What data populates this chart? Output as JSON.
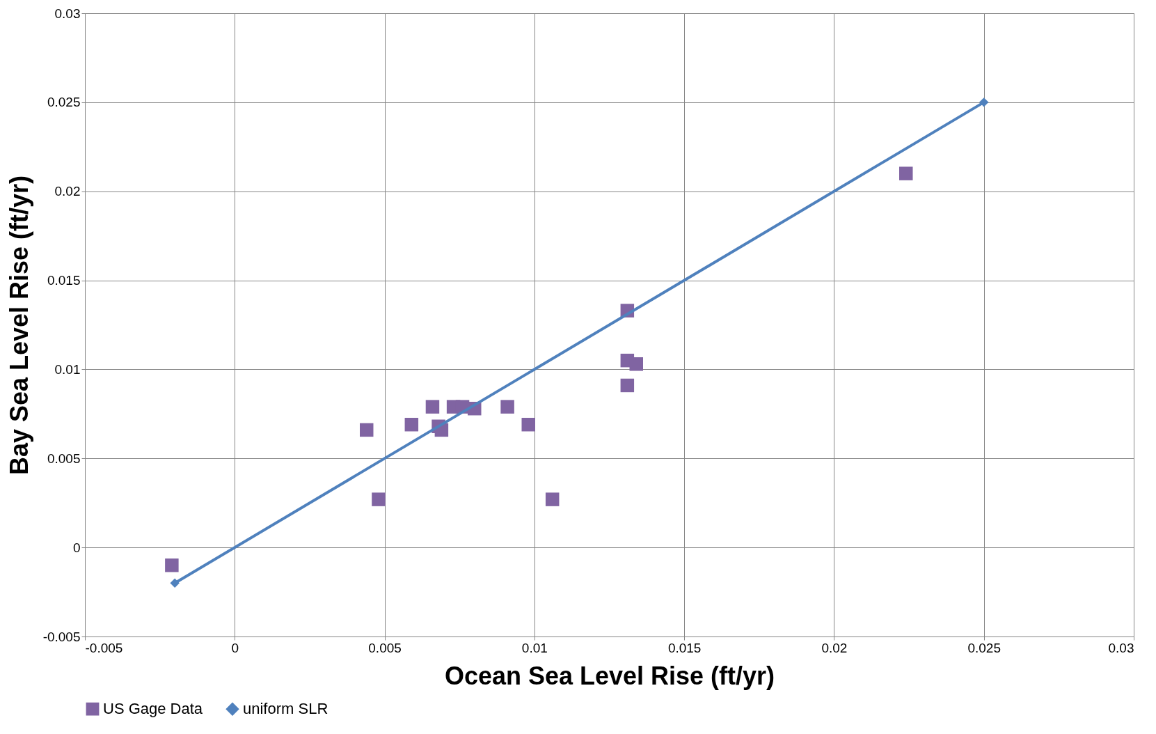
{
  "chart_data": {
    "type": "scatter",
    "xlabel": "Ocean Sea Level Rise (ft/yr)",
    "ylabel": "Bay Sea Level Rise (ft/yr)",
    "xlim": [
      -0.005,
      0.03
    ],
    "ylim": [
      -0.005,
      0.03
    ],
    "xticks": [
      -0.005,
      0,
      0.005,
      0.01,
      0.015,
      0.02,
      0.025,
      0.03
    ],
    "yticks": [
      -0.005,
      0,
      0.005,
      0.01,
      0.015,
      0.02,
      0.025,
      0.03
    ],
    "grid": true,
    "legend": "bottom",
    "series": [
      {
        "name": "US Gage Data",
        "marker": "square",
        "color": "#8064a2",
        "x": [
          -0.0021,
          0.0044,
          0.0048,
          0.0059,
          0.0066,
          0.0068,
          0.0069,
          0.0073,
          0.0076,
          0.008,
          0.0091,
          0.0098,
          0.0106,
          0.0131,
          0.0131,
          0.0134,
          0.0131,
          0.0224
        ],
        "values": [
          -0.001,
          0.0066,
          0.0027,
          0.0069,
          0.0079,
          0.0068,
          0.0066,
          0.0079,
          0.0079,
          0.0078,
          0.0079,
          0.0069,
          0.0027,
          0.0133,
          0.0105,
          0.0103,
          0.0091,
          0.021
        ]
      },
      {
        "name": "uniform SLR",
        "type": "line",
        "marker": "diamond",
        "line_style": "solid",
        "color": "#4f81bd",
        "x": [
          -0.002,
          0.025
        ],
        "values": [
          -0.002,
          0.025
        ]
      }
    ]
  }
}
